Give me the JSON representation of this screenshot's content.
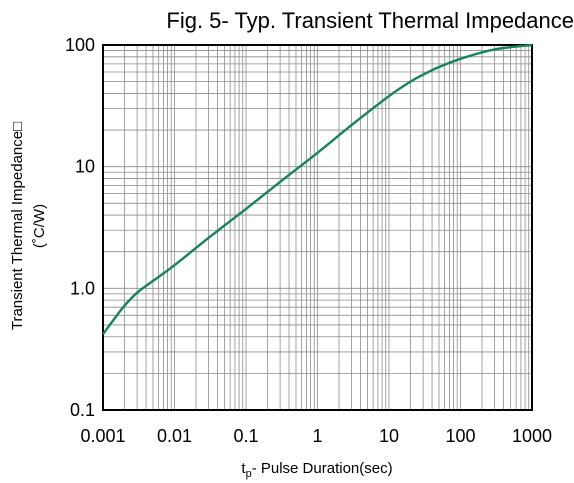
{
  "chart_data": {
    "type": "line",
    "title": "Fig. 5- Typ. Transient Thermal Impedance",
    "xlabel": "t",
    "xlabel_sub": "p",
    "xlabel_rest": "- Pulse Duration(sec)",
    "ylabel": "Transient Thermal Impedance□",
    "yunit": "(˚C/W)",
    "x_scale": "log",
    "y_scale": "log",
    "xlim": [
      0.001,
      1000
    ],
    "ylim": [
      0.1,
      100
    ],
    "x_ticks": [
      "0.001",
      "0.01",
      "0.1",
      "1",
      "10",
      "100",
      "1000"
    ],
    "y_ticks": [
      "0.1",
      "1.0",
      "10",
      "100"
    ],
    "grid": true,
    "line_color": "#16835a",
    "series": [
      {
        "x": [
          0.001,
          0.0015,
          0.002,
          0.003,
          0.005,
          0.01,
          0.03,
          0.1,
          0.3,
          1,
          3,
          10,
          20,
          30,
          50,
          100,
          200,
          300,
          500,
          1000
        ],
        "values": [
          0.42,
          0.58,
          0.72,
          0.92,
          1.15,
          1.55,
          2.6,
          4.5,
          7.5,
          13,
          22,
          38,
          50,
          57,
          66,
          77,
          87,
          92,
          96,
          100
        ]
      }
    ]
  }
}
